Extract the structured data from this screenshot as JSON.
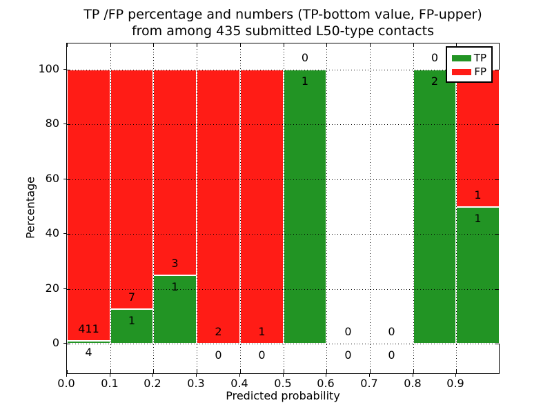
{
  "title": {
    "line1": "TP /FP percentage and numbers (TP-bottom value, FP-upper)",
    "line2": "from among 435 submitted L50-type contacts"
  },
  "chart_data": {
    "type": "bar",
    "stacked": true,
    "title": "TP /FP percentage and numbers (TP-bottom value, FP-upper) from among 435 submitted L50-type contacts",
    "xlabel": "Predicted probability",
    "ylabel": "Percentage",
    "xlim": [
      0.0,
      1.0
    ],
    "ylim": [
      -11,
      110
    ],
    "grid": "dotted",
    "legend_position": "upper right",
    "x_tick_labels": [
      "0.0",
      "0.1",
      "0.2",
      "0.3",
      "0.4",
      "0.5",
      "0.6",
      "0.7",
      "0.8",
      "0.9"
    ],
    "y_tick_values": [
      0,
      20,
      40,
      60,
      80,
      100
    ],
    "series": [
      {
        "name": "TP",
        "color": "#229424",
        "position": "bottom",
        "values": [
          4,
          1,
          1,
          0,
          0,
          1,
          0,
          0,
          2,
          1
        ]
      },
      {
        "name": "FP",
        "color": "#ff1c16",
        "position": "top",
        "values": [
          411,
          7,
          3,
          2,
          1,
          0,
          0,
          0,
          0,
          1
        ]
      }
    ],
    "bins": [
      {
        "x0": 0.0,
        "x1": 0.1,
        "tp": 4,
        "fp": 411,
        "tp_pct": 0.96
      },
      {
        "x0": 0.1,
        "x1": 0.2,
        "tp": 1,
        "fp": 7,
        "tp_pct": 12.5
      },
      {
        "x0": 0.2,
        "x1": 0.3,
        "tp": 1,
        "fp": 3,
        "tp_pct": 25
      },
      {
        "x0": 0.3,
        "x1": 0.4,
        "tp": 0,
        "fp": 2,
        "tp_pct": 0
      },
      {
        "x0": 0.4,
        "x1": 0.5,
        "tp": 0,
        "fp": 1,
        "tp_pct": 0
      },
      {
        "x0": 0.5,
        "x1": 0.6,
        "tp": 1,
        "fp": 0,
        "tp_pct": 100
      },
      {
        "x0": 0.6,
        "x1": 0.7,
        "tp": 0,
        "fp": 0,
        "tp_pct": 0
      },
      {
        "x0": 0.7,
        "x1": 0.8,
        "tp": 0,
        "fp": 0,
        "tp_pct": 0
      },
      {
        "x0": 0.8,
        "x1": 0.9,
        "tp": 2,
        "fp": 0,
        "tp_pct": 100
      },
      {
        "x0": 0.9,
        "x1": 1.0,
        "tp": 1,
        "fp": 1,
        "tp_pct": 50
      }
    ],
    "legend": [
      {
        "label": "TP",
        "color": "#229424"
      },
      {
        "label": "FP",
        "color": "#ff1c16"
      }
    ]
  },
  "colors": {
    "tp_green": "#229424",
    "fp_red": "#ff1c16",
    "grid": "#000000",
    "background": "#ffffff",
    "text": "#000000"
  }
}
